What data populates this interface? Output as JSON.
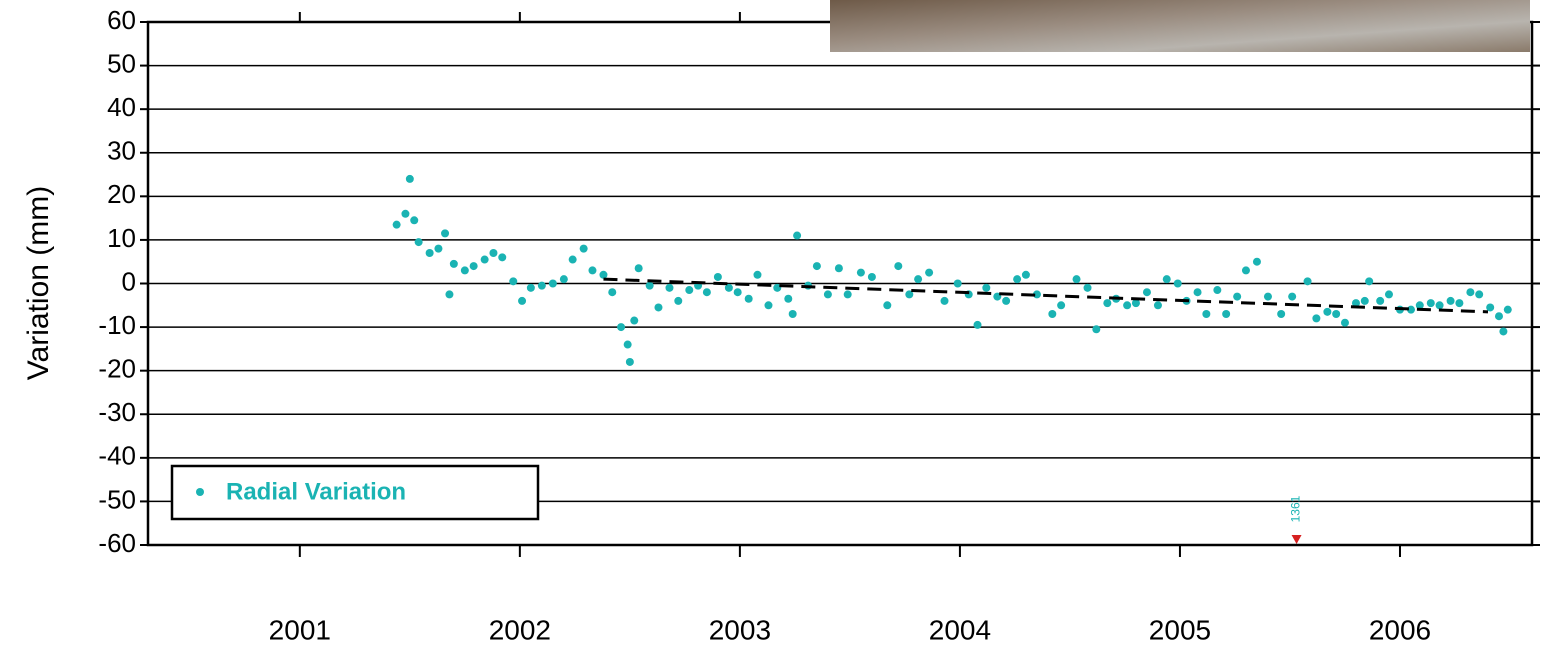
{
  "chart_data": {
    "type": "scatter",
    "y_label": "Variation (mm)",
    "xlim": [
      2000.31,
      2006.6
    ],
    "xticks": [
      2001,
      2002,
      2003,
      2004,
      2005,
      2006
    ],
    "ylim": [
      -60,
      60
    ],
    "yticks": [
      -60,
      -50,
      -40,
      -30,
      -20,
      -10,
      0,
      10,
      20,
      30,
      40,
      50,
      60
    ],
    "grid": true,
    "legend": "lower left",
    "series": [
      {
        "name": "Radial Variation",
        "color": "#1ab3b3",
        "x": [
          2001.44,
          2001.48,
          2001.5,
          2001.52,
          2001.54,
          2001.59,
          2001.63,
          2001.66,
          2001.68,
          2001.7,
          2001.75,
          2001.79,
          2001.84,
          2001.88,
          2001.92,
          2001.97,
          2002.01,
          2002.05,
          2002.1,
          2002.15,
          2002.2,
          2002.24,
          2002.29,
          2002.33,
          2002.38,
          2002.42,
          2002.46,
          2002.49,
          2002.5,
          2002.52,
          2002.54,
          2002.59,
          2002.63,
          2002.68,
          2002.72,
          2002.77,
          2002.81,
          2002.85,
          2002.9,
          2002.95,
          2002.99,
          2003.04,
          2003.08,
          2003.13,
          2003.17,
          2003.22,
          2003.24,
          2003.26,
          2003.31,
          2003.35,
          2003.4,
          2003.45,
          2003.49,
          2003.55,
          2003.6,
          2003.67,
          2003.72,
          2003.77,
          2003.81,
          2003.86,
          2003.93,
          2003.99,
          2004.04,
          2004.08,
          2004.12,
          2004.17,
          2004.21,
          2004.26,
          2004.3,
          2004.35,
          2004.42,
          2004.46,
          2004.53,
          2004.58,
          2004.62,
          2004.67,
          2004.71,
          2004.76,
          2004.8,
          2004.85,
          2004.9,
          2004.94,
          2004.99,
          2005.03,
          2005.08,
          2005.12,
          2005.17,
          2005.21,
          2005.26,
          2005.3,
          2005.35,
          2005.4,
          2005.46,
          2005.51,
          2005.58,
          2005.62,
          2005.67,
          2005.71,
          2005.75,
          2005.8,
          2005.84,
          2005.86,
          2005.91,
          2005.95,
          2006.0,
          2006.05,
          2006.09,
          2006.14,
          2006.18,
          2006.23,
          2006.27,
          2006.32,
          2006.36,
          2006.41,
          2006.45,
          2006.47,
          2006.49
        ],
        "values": [
          13.5,
          16,
          24,
          14.5,
          9.5,
          7,
          8,
          11.5,
          -2.5,
          4.5,
          3,
          4,
          5.5,
          7,
          6,
          0.5,
          -4,
          -1,
          -0.5,
          0,
          1,
          5.5,
          8,
          3,
          2,
          -2,
          -10,
          -14,
          -18,
          -8.5,
          3.5,
          -0.5,
          -5.5,
          -1,
          -4,
          -1.5,
          -0.5,
          -2,
          1.5,
          -1,
          -2,
          -3.5,
          2,
          -5,
          -1,
          -3.5,
          -7,
          11,
          -0.5,
          4,
          -2.5,
          3.5,
          -2.5,
          2.5,
          1.5,
          -5,
          4,
          -2.5,
          1,
          2.5,
          -4,
          0,
          -2.5,
          -9.5,
          -1,
          -3,
          -4,
          1,
          2,
          -2.5,
          -7,
          -5,
          1,
          -1,
          -10.5,
          -4.5,
          -3.5,
          -5,
          -4.5,
          -2,
          -5,
          1,
          0,
          -4,
          -2,
          -7,
          -1.5,
          -7,
          -3,
          3,
          5,
          -3,
          -7,
          -3,
          0.5,
          -8,
          -6.5,
          -7,
          -9,
          -4.5,
          -4,
          0.5,
          -4,
          -2.5,
          -6,
          -6,
          -5,
          -4.5,
          -5,
          -4,
          -4.5,
          -2,
          -2.5,
          -5.5,
          -7.5,
          -11,
          -6
        ]
      }
    ],
    "trend": {
      "color": "#000000",
      "x": [
        2002.38,
        2006.4
      ],
      "values": [
        1,
        -6.5
      ]
    },
    "annotation": {
      "text": "1361",
      "x": 2005.53,
      "color": "#d62020"
    }
  }
}
